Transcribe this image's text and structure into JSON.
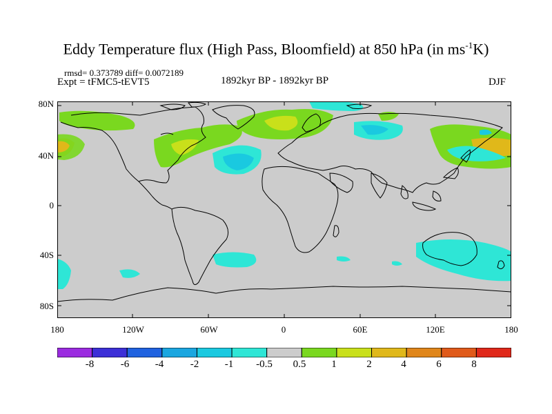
{
  "title": {
    "main": "Eddy Temperature flux (High Pass, Bloomfield) at 850 hPa (in ms",
    "sup": "-1",
    "end": "K)"
  },
  "stats": "rmsd= 0.373789 diff= 0.0072189",
  "experiment": "Expt = tFMC5-tEVT5",
  "period": "1892kyr BP - 1892kyr BP",
  "season": "DJF",
  "lat_labels": [
    "80N",
    "40N",
    "0",
    "40S",
    "80S"
  ],
  "lon_labels": [
    "180",
    "120W",
    "60W",
    "0",
    "60E",
    "120E",
    "180"
  ],
  "colorbar": {
    "labels": [
      "-8",
      "-6",
      "-4",
      "-2",
      "-1",
      "-0.5",
      "0.5",
      "1",
      "2",
      "4",
      "6",
      "8"
    ],
    "colors": [
      "#9b2be0",
      "#3c2fd7",
      "#1f62e0",
      "#1aa6e0",
      "#1ac9e0",
      "#2ee6d6",
      "#cccccc",
      "#7ad81f",
      "#c9e01a",
      "#e0b81a",
      "#e0861a",
      "#e05a1a",
      "#e0281a"
    ]
  },
  "field_colors": {
    "land_bg": "#cccccc",
    "pos_weak": "#7ad81f",
    "pos_mid": "#c9e01a",
    "pos_strong": "#e0b81a",
    "neg_weak": "#2ee6d6",
    "neg_mid": "#1ac9e0"
  }
}
